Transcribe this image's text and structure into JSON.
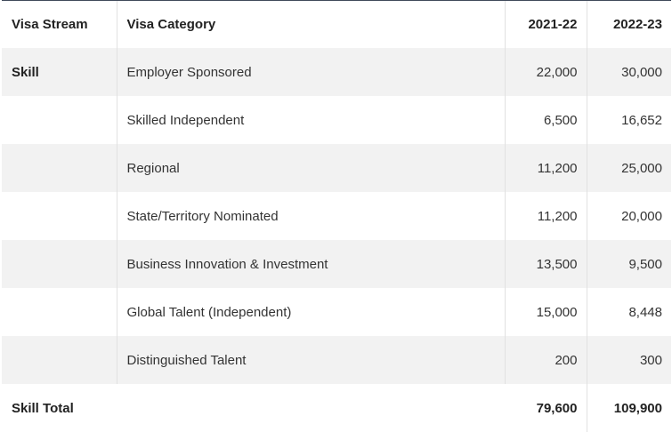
{
  "table": {
    "headers": {
      "stream": "Visa Stream",
      "category": "Visa Category",
      "year1": "2021-22",
      "year2": "2022-23"
    },
    "rows": [
      {
        "stream": "Skill",
        "category": "Employer Sponsored",
        "year1": "22,000",
        "year2": "30,000"
      },
      {
        "stream": "",
        "category": "Skilled Independent",
        "year1": "6,500",
        "year2": "16,652"
      },
      {
        "stream": "",
        "category": "Regional",
        "year1": "11,200",
        "year2": "25,000"
      },
      {
        "stream": "",
        "category": "State/Territory Nominated",
        "year1": "11,200",
        "year2": "20,000"
      },
      {
        "stream": "",
        "category": "Business Innovation & Investment",
        "year1": "13,500",
        "year2": "9,500"
      },
      {
        "stream": "",
        "category": "Global Talent (Independent)",
        "year1": "15,000",
        "year2": "8,448"
      },
      {
        "stream": "",
        "category": "Distinguished Talent",
        "year1": "200",
        "year2": "300"
      }
    ],
    "total": {
      "label": "Skill Total",
      "year1": "79,600",
      "year2": "109,900"
    }
  }
}
